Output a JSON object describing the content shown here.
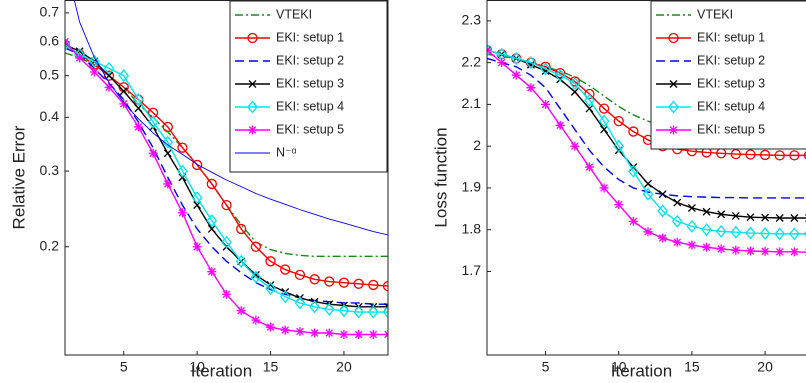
{
  "chart_data": [
    {
      "type": "line",
      "ylabel": "Relative Error",
      "xlabel": "Iteration",
      "log_y": true,
      "grid": false,
      "legend": "upper right",
      "x": [
        1,
        2,
        3,
        4,
        5,
        6,
        7,
        8,
        9,
        10,
        11,
        12,
        13,
        14,
        15,
        16,
        17,
        18,
        19,
        20,
        21,
        22,
        23
      ],
      "xlim": [
        1,
        23
      ],
      "xticks": [
        5,
        10,
        15,
        20
      ],
      "ylim": [
        0.112,
        0.75
      ],
      "yticks": [
        0.2,
        0.3,
        0.4,
        0.5,
        0.6,
        0.7
      ],
      "series": [
        {
          "name": "VTEKI",
          "color": "#1a8a1a",
          "dash": "dashdot",
          "marker": "none",
          "values": [
            0.565,
            0.55,
            0.53,
            0.5,
            0.47,
            0.43,
            0.4,
            0.37,
            0.34,
            0.31,
            0.28,
            0.25,
            0.225,
            0.205,
            0.197,
            0.193,
            0.191,
            0.19,
            0.19,
            0.19,
            0.19,
            0.19,
            0.19
          ]
        },
        {
          "name": "EKI: setup 1",
          "color": "#ff0000",
          "dash": "solid",
          "marker": "o",
          "values": [
            0.59,
            0.56,
            0.53,
            0.5,
            0.47,
            0.44,
            0.41,
            0.38,
            0.34,
            0.31,
            0.28,
            0.25,
            0.22,
            0.2,
            0.185,
            0.177,
            0.172,
            0.168,
            0.166,
            0.165,
            0.164,
            0.163,
            0.162
          ]
        },
        {
          "name": "EKI: setup 2",
          "color": "#0000ff",
          "dash": "dashed",
          "marker": "none",
          "values": [
            0.58,
            0.56,
            0.52,
            0.48,
            0.44,
            0.39,
            0.34,
            0.29,
            0.25,
            0.22,
            0.2,
            0.185,
            0.174,
            0.165,
            0.159,
            0.155,
            0.152,
            0.15,
            0.149,
            0.148,
            0.148,
            0.147,
            0.147
          ]
        },
        {
          "name": "EKI: setup 3",
          "color": "#000000",
          "dash": "solid",
          "marker": "x",
          "values": [
            0.59,
            0.57,
            0.54,
            0.5,
            0.46,
            0.42,
            0.38,
            0.33,
            0.29,
            0.25,
            0.22,
            0.2,
            0.185,
            0.172,
            0.163,
            0.157,
            0.152,
            0.149,
            0.147,
            0.146,
            0.145,
            0.145,
            0.145
          ]
        },
        {
          "name": "EKI: setup 4",
          "color": "#00e5ee",
          "dash": "solid",
          "marker": "diamond",
          "values": [
            0.59,
            0.56,
            0.54,
            0.52,
            0.5,
            0.44,
            0.39,
            0.35,
            0.3,
            0.26,
            0.23,
            0.205,
            0.185,
            0.17,
            0.16,
            0.153,
            0.148,
            0.145,
            0.143,
            0.142,
            0.141,
            0.141,
            0.141
          ]
        },
        {
          "name": "EKI: setup 5",
          "color": "#ff00ff",
          "dash": "solid",
          "marker": "*",
          "values": [
            0.6,
            0.55,
            0.51,
            0.47,
            0.43,
            0.38,
            0.33,
            0.28,
            0.24,
            0.2,
            0.175,
            0.155,
            0.142,
            0.135,
            0.13,
            0.128,
            0.127,
            0.126,
            0.126,
            0.125,
            0.125,
            0.125,
            0.125
          ]
        },
        {
          "name": "N⁻ᵅ",
          "color": "#0000ff",
          "dash": "thin",
          "marker": "none",
          "values": [
            0.92,
            0.666,
            0.551,
            0.482,
            0.433,
            0.397,
            0.368,
            0.345,
            0.328,
            0.311,
            0.298,
            0.286,
            0.276,
            0.266,
            0.258,
            0.251,
            0.244,
            0.238,
            0.232,
            0.227,
            0.222,
            0.217,
            0.213
          ]
        }
      ]
    },
    {
      "type": "line",
      "ylabel": "Loss function",
      "xlabel": "Iteration",
      "log_y": false,
      "grid": false,
      "legend": "upper right",
      "x": [
        1,
        2,
        3,
        4,
        5,
        6,
        7,
        8,
        9,
        10,
        11,
        12,
        13,
        14,
        15,
        16,
        17,
        18,
        19,
        20,
        21,
        22,
        23
      ],
      "xlim": [
        1,
        23
      ],
      "xticks": [
        5,
        10,
        15,
        20
      ],
      "ylim": [
        1.5,
        2.35
      ],
      "yticks": [
        1.7,
        1.8,
        1.9,
        2,
        2.1,
        2.2,
        2.3
      ],
      "series": [
        {
          "name": "VTEKI",
          "color": "#1a8a1a",
          "dash": "dashdot",
          "marker": "none",
          "values": [
            2.22,
            2.215,
            2.21,
            2.2,
            2.19,
            2.18,
            2.165,
            2.145,
            2.12,
            2.095,
            2.075,
            2.06,
            2.048,
            2.04,
            2.033,
            2.028,
            2.024,
            2.021,
            2.019,
            2.017,
            2.016,
            2.015,
            2.015
          ]
        },
        {
          "name": "EKI: setup 1",
          "color": "#ff0000",
          "dash": "solid",
          "marker": "o",
          "values": [
            2.23,
            2.22,
            2.21,
            2.2,
            2.19,
            2.175,
            2.155,
            2.125,
            2.09,
            2.06,
            2.035,
            2.015,
            2.0,
            1.993,
            1.988,
            1.985,
            1.983,
            1.981,
            1.98,
            1.979,
            1.978,
            1.978,
            1.978
          ]
        },
        {
          "name": "EKI: setup 2",
          "color": "#0000ff",
          "dash": "dashed",
          "marker": "none",
          "values": [
            2.21,
            2.2,
            2.19,
            2.17,
            2.14,
            2.09,
            2.04,
            1.99,
            1.95,
            1.92,
            1.9,
            1.89,
            1.885,
            1.881,
            1.879,
            1.878,
            1.877,
            1.877,
            1.876,
            1.876,
            1.876,
            1.876,
            1.876
          ]
        },
        {
          "name": "EKI: setup 3",
          "color": "#000000",
          "dash": "solid",
          "marker": "x",
          "values": [
            2.23,
            2.22,
            2.21,
            2.195,
            2.18,
            2.16,
            2.13,
            2.09,
            2.04,
            1.99,
            1.95,
            1.91,
            1.885,
            1.865,
            1.852,
            1.843,
            1.837,
            1.833,
            1.83,
            1.829,
            1.828,
            1.828,
            1.828
          ]
        },
        {
          "name": "EKI: setup 4",
          "color": "#00e5ee",
          "dash": "solid",
          "marker": "diamond",
          "values": [
            2.23,
            2.22,
            2.21,
            2.2,
            2.185,
            2.17,
            2.15,
            2.11,
            2.06,
            2.0,
            1.94,
            1.885,
            1.845,
            1.82,
            1.808,
            1.8,
            1.796,
            1.794,
            1.792,
            1.791,
            1.79,
            1.79,
            1.79
          ]
        },
        {
          "name": "EKI: setup 5",
          "color": "#ff00ff",
          "dash": "solid",
          "marker": "*",
          "values": [
            2.23,
            2.2,
            2.17,
            2.14,
            2.1,
            2.05,
            2.0,
            1.95,
            1.9,
            1.86,
            1.82,
            1.795,
            1.78,
            1.77,
            1.763,
            1.758,
            1.754,
            1.751,
            1.749,
            1.748,
            1.747,
            1.747,
            1.746
          ]
        }
      ]
    }
  ]
}
